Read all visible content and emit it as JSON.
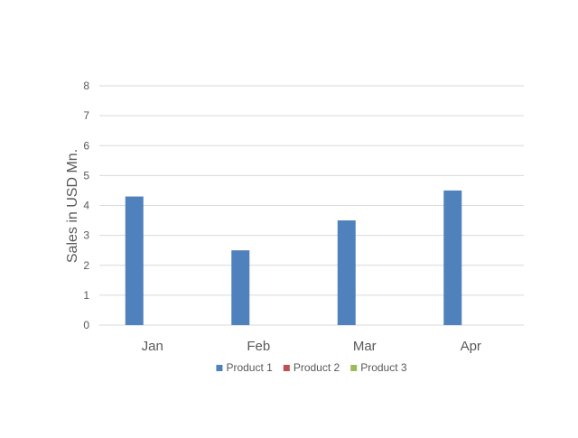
{
  "chart_data": {
    "type": "bar",
    "title": "",
    "xlabel": "",
    "ylabel": "Sales in USD Mn.",
    "categories": [
      "Jan",
      "Feb",
      "Mar",
      "Apr"
    ],
    "series": [
      {
        "name": "Product 1",
        "color": "#4f81bd",
        "values": [
          4.3,
          2.5,
          3.5,
          4.5
        ]
      },
      {
        "name": "Product 2",
        "color": "#c0504d",
        "values": [
          0,
          0,
          0,
          0
        ]
      },
      {
        "name": "Product 3",
        "color": "#9bbb59",
        "values": [
          0,
          0,
          0,
          0
        ]
      }
    ],
    "ylim": [
      0,
      8
    ],
    "yticks": [
      "0",
      "1",
      "2",
      "3",
      "4",
      "5",
      "6",
      "7",
      "8"
    ],
    "grid": true,
    "legend_position": "bottom"
  }
}
